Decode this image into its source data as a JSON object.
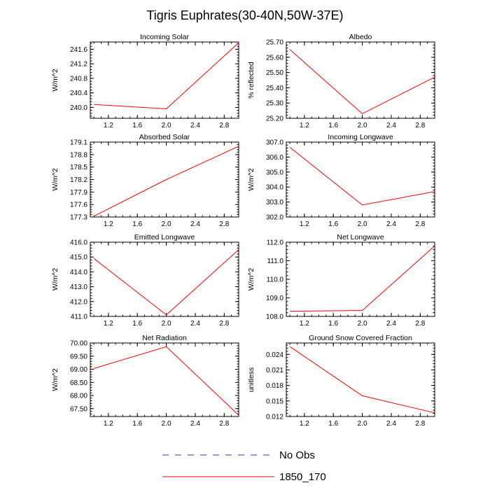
{
  "title": "Tigris Euphrates(30-40N,50W-37E)",
  "colors": {
    "series": "#ff0000",
    "obs": "#3333aa",
    "axis": "#000000"
  },
  "legend": {
    "items": [
      {
        "label": "No Obs",
        "style": "dashed",
        "color": "#3333aa"
      },
      {
        "label": "1850_170",
        "style": "solid",
        "color": "#ff0000"
      }
    ]
  },
  "chart_data": [
    {
      "type": "line",
      "title": "Incoming Solar",
      "ylabel": "W/m^2",
      "xlim": [
        0.95,
        3.0
      ],
      "ylim": [
        239.7,
        241.8
      ],
      "xticks": [
        1.2,
        1.6,
        2.0,
        2.4,
        2.8
      ],
      "xticklabels": [
        "1.2",
        "1.6",
        "2.0",
        "2.4",
        "2.8"
      ],
      "yticks": [
        240.0,
        240.4,
        240.8,
        241.2,
        241.6
      ],
      "yticklabels": [
        "240.0",
        "240.4",
        "240.8",
        "241.2",
        "241.6"
      ],
      "series": [
        {
          "name": "1850_170",
          "x": [
            1.0,
            2.0,
            3.0
          ],
          "y": [
            240.08,
            239.96,
            241.78
          ]
        }
      ]
    },
    {
      "type": "line",
      "title": "Albedo",
      "ylabel": "% reflected",
      "xlim": [
        0.95,
        3.0
      ],
      "ylim": [
        25.2,
        25.7
      ],
      "xticks": [
        1.2,
        1.6,
        2.0,
        2.4,
        2.8
      ],
      "xticklabels": [
        "1.2",
        "1.6",
        "2.0",
        "2.4",
        "2.8"
      ],
      "yticks": [
        25.2,
        25.3,
        25.4,
        25.5,
        25.6,
        25.7
      ],
      "yticklabels": [
        "25.20",
        "25.30",
        "25.40",
        "25.50",
        "25.60",
        "25.70"
      ],
      "series": [
        {
          "name": "1850_170",
          "x": [
            1.0,
            2.0,
            3.0
          ],
          "y": [
            25.65,
            25.23,
            25.47
          ]
        }
      ]
    },
    {
      "type": "line",
      "title": "Absorbed Solar",
      "ylabel": "W/m^2",
      "xlim": [
        0.95,
        3.0
      ],
      "ylim": [
        177.3,
        179.1
      ],
      "xticks": [
        1.2,
        1.6,
        2.0,
        2.4,
        2.8
      ],
      "xticklabels": [
        "1.2",
        "1.6",
        "2.0",
        "2.4",
        "2.8"
      ],
      "yticks": [
        177.3,
        177.6,
        177.9,
        178.2,
        178.5,
        178.8,
        179.1
      ],
      "yticklabels": [
        "177.3",
        "177.6",
        "177.9",
        "178.2",
        "178.5",
        "178.8",
        "179.1"
      ],
      "series": [
        {
          "name": "1850_170",
          "x": [
            1.0,
            2.0,
            3.0
          ],
          "y": [
            177.32,
            178.2,
            179.0
          ]
        }
      ]
    },
    {
      "type": "line",
      "title": "Incoming Longwave",
      "ylabel": "W/m^2",
      "xlim": [
        0.95,
        3.0
      ],
      "ylim": [
        302.0,
        307.0
      ],
      "xticks": [
        1.2,
        1.6,
        2.0,
        2.4,
        2.8
      ],
      "xticklabels": [
        "1.2",
        "1.6",
        "2.0",
        "2.4",
        "2.8"
      ],
      "yticks": [
        302.0,
        303.0,
        304.0,
        305.0,
        306.0,
        307.0
      ],
      "yticklabels": [
        "302.0",
        "303.0",
        "304.0",
        "305.0",
        "306.0",
        "307.0"
      ],
      "series": [
        {
          "name": "1850_170",
          "x": [
            1.0,
            2.0,
            3.0
          ],
          "y": [
            306.65,
            302.8,
            303.7
          ]
        }
      ]
    },
    {
      "type": "line",
      "title": "Emitted Longwave",
      "ylabel": "W/m^2",
      "xlim": [
        0.95,
        3.0
      ],
      "ylim": [
        411.0,
        416.0
      ],
      "xticks": [
        1.2,
        1.6,
        2.0,
        2.4,
        2.8
      ],
      "xticklabels": [
        "1.2",
        "1.6",
        "2.0",
        "2.4",
        "2.8"
      ],
      "yticks": [
        411.0,
        412.0,
        413.0,
        414.0,
        415.0,
        416.0
      ],
      "yticklabels": [
        "411.0",
        "412.0",
        "413.0",
        "414.0",
        "415.0",
        "416.0"
      ],
      "series": [
        {
          "name": "1850_170",
          "x": [
            1.0,
            2.0,
            3.0
          ],
          "y": [
            414.9,
            411.1,
            415.5
          ]
        }
      ]
    },
    {
      "type": "line",
      "title": "Net Longwave",
      "ylabel": "W/m^2",
      "xlim": [
        0.95,
        3.0
      ],
      "ylim": [
        108.0,
        112.0
      ],
      "xticks": [
        1.2,
        1.6,
        2.0,
        2.4,
        2.8
      ],
      "xticklabels": [
        "1.2",
        "1.6",
        "2.0",
        "2.4",
        "2.8"
      ],
      "yticks": [
        108.0,
        109.0,
        110.0,
        111.0,
        112.0
      ],
      "yticklabels": [
        "108.0",
        "109.0",
        "110.0",
        "111.0",
        "112.0"
      ],
      "series": [
        {
          "name": "1850_170",
          "x": [
            1.0,
            2.0,
            3.0
          ],
          "y": [
            108.28,
            108.32,
            111.8
          ]
        }
      ]
    },
    {
      "type": "line",
      "title": "Net Radiation",
      "ylabel": "W/m^2",
      "xlim": [
        0.95,
        3.0
      ],
      "ylim": [
        67.2,
        70.0
      ],
      "xticks": [
        1.2,
        1.6,
        2.0,
        2.4,
        2.8
      ],
      "xticklabels": [
        "1.2",
        "1.6",
        "2.0",
        "2.4",
        "2.8"
      ],
      "yticks": [
        67.5,
        68.0,
        68.5,
        69.0,
        69.5,
        70.0
      ],
      "yticklabels": [
        "67.50",
        "68.00",
        "68.50",
        "69.00",
        "69.50",
        "70.00"
      ],
      "series": [
        {
          "name": "1850_170",
          "x": [
            1.0,
            2.0,
            3.0
          ],
          "y": [
            69.03,
            69.86,
            67.25
          ]
        }
      ]
    },
    {
      "type": "line",
      "title": "Ground Snow Covered Fraction",
      "ylabel": "unitless",
      "xlim": [
        0.95,
        3.0
      ],
      "ylim": [
        0.012,
        0.0262
      ],
      "xticks": [
        1.2,
        1.6,
        2.0,
        2.4,
        2.8
      ],
      "xticklabels": [
        "1.2",
        "1.6",
        "2.0",
        "2.4",
        "2.8"
      ],
      "yticks": [
        0.012,
        0.015,
        0.018,
        0.021,
        0.024
      ],
      "yticklabels": [
        "0.012",
        "0.015",
        "0.018",
        "0.021",
        "0.024"
      ],
      "series": [
        {
          "name": "1850_170",
          "x": [
            1.0,
            2.0,
            3.0
          ],
          "y": [
            0.0255,
            0.016,
            0.0127
          ]
        }
      ]
    }
  ]
}
